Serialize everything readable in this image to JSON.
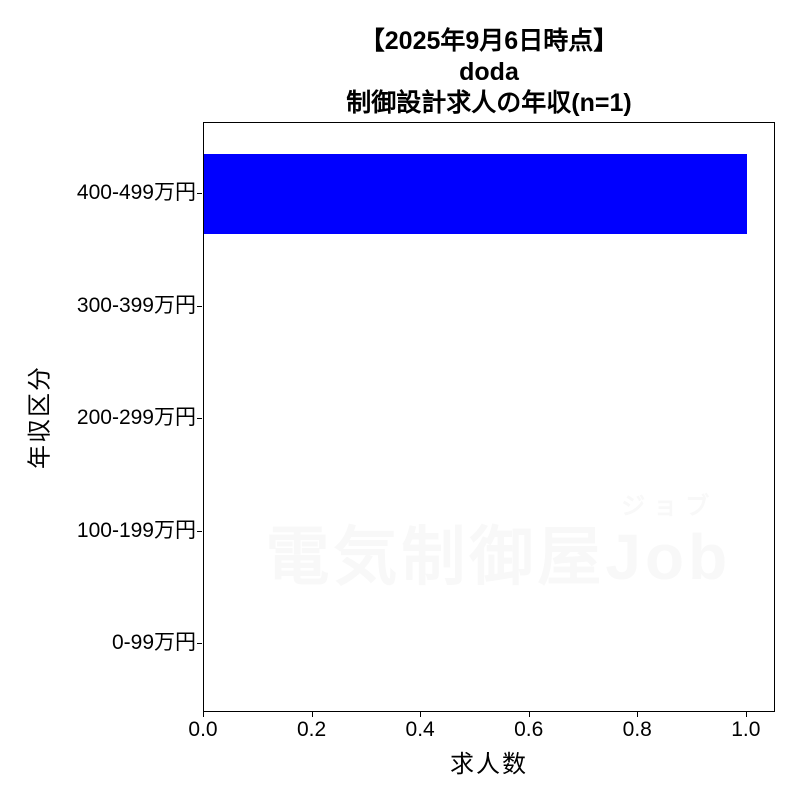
{
  "chart_data": {
    "type": "bar",
    "orientation": "horizontal",
    "title_lines": [
      "【2025年9月6日時点】",
      "doda",
      "制御設計求人の年収(n=1)"
    ],
    "categories": [
      "400-499万円",
      "300-399万円",
      "200-299万円",
      "100-199万円",
      "0-99万円"
    ],
    "values": [
      1,
      0,
      0,
      0,
      0
    ],
    "xlabel": "求人数",
    "ylabel": "年収区分",
    "x_tick_values": [
      0.0,
      0.2,
      0.4,
      0.6,
      0.8,
      1.0
    ],
    "x_tick_labels": [
      "0.0",
      "0.2",
      "0.4",
      "0.6",
      "0.8",
      "1.0"
    ],
    "xlim": [
      0,
      1.05
    ],
    "grid": false,
    "legend": false,
    "bar_color": "#0000ff",
    "axis_color": "#000000",
    "watermark": {
      "text": "電気制御屋Job",
      "ruby": "ジョブ",
      "color": "#f8f8f8"
    }
  }
}
